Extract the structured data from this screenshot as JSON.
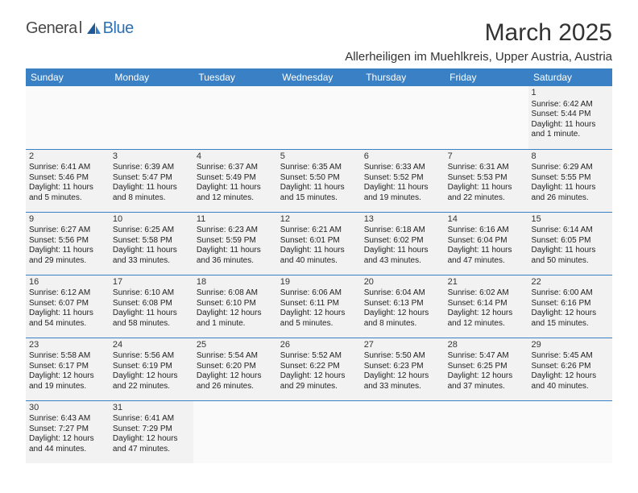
{
  "logo": {
    "general": "Genera",
    "l": "l",
    "blue": "Blue"
  },
  "title": "March 2025",
  "location": "Allerheiligen im Muehlkreis, Upper Austria, Austria",
  "dayHeaders": [
    "Sunday",
    "Monday",
    "Tuesday",
    "Wednesday",
    "Thursday",
    "Friday",
    "Saturday"
  ],
  "weeks": [
    [
      null,
      null,
      null,
      null,
      null,
      null,
      {
        "d": "1",
        "sr": "Sunrise: 6:42 AM",
        "ss": "Sunset: 5:44 PM",
        "dl1": "Daylight: 11 hours",
        "dl2": "and 1 minute."
      }
    ],
    [
      {
        "d": "2",
        "sr": "Sunrise: 6:41 AM",
        "ss": "Sunset: 5:46 PM",
        "dl1": "Daylight: 11 hours",
        "dl2": "and 5 minutes."
      },
      {
        "d": "3",
        "sr": "Sunrise: 6:39 AM",
        "ss": "Sunset: 5:47 PM",
        "dl1": "Daylight: 11 hours",
        "dl2": "and 8 minutes."
      },
      {
        "d": "4",
        "sr": "Sunrise: 6:37 AM",
        "ss": "Sunset: 5:49 PM",
        "dl1": "Daylight: 11 hours",
        "dl2": "and 12 minutes."
      },
      {
        "d": "5",
        "sr": "Sunrise: 6:35 AM",
        "ss": "Sunset: 5:50 PM",
        "dl1": "Daylight: 11 hours",
        "dl2": "and 15 minutes."
      },
      {
        "d": "6",
        "sr": "Sunrise: 6:33 AM",
        "ss": "Sunset: 5:52 PM",
        "dl1": "Daylight: 11 hours",
        "dl2": "and 19 minutes."
      },
      {
        "d": "7",
        "sr": "Sunrise: 6:31 AM",
        "ss": "Sunset: 5:53 PM",
        "dl1": "Daylight: 11 hours",
        "dl2": "and 22 minutes."
      },
      {
        "d": "8",
        "sr": "Sunrise: 6:29 AM",
        "ss": "Sunset: 5:55 PM",
        "dl1": "Daylight: 11 hours",
        "dl2": "and 26 minutes."
      }
    ],
    [
      {
        "d": "9",
        "sr": "Sunrise: 6:27 AM",
        "ss": "Sunset: 5:56 PM",
        "dl1": "Daylight: 11 hours",
        "dl2": "and 29 minutes."
      },
      {
        "d": "10",
        "sr": "Sunrise: 6:25 AM",
        "ss": "Sunset: 5:58 PM",
        "dl1": "Daylight: 11 hours",
        "dl2": "and 33 minutes."
      },
      {
        "d": "11",
        "sr": "Sunrise: 6:23 AM",
        "ss": "Sunset: 5:59 PM",
        "dl1": "Daylight: 11 hours",
        "dl2": "and 36 minutes."
      },
      {
        "d": "12",
        "sr": "Sunrise: 6:21 AM",
        "ss": "Sunset: 6:01 PM",
        "dl1": "Daylight: 11 hours",
        "dl2": "and 40 minutes."
      },
      {
        "d": "13",
        "sr": "Sunrise: 6:18 AM",
        "ss": "Sunset: 6:02 PM",
        "dl1": "Daylight: 11 hours",
        "dl2": "and 43 minutes."
      },
      {
        "d": "14",
        "sr": "Sunrise: 6:16 AM",
        "ss": "Sunset: 6:04 PM",
        "dl1": "Daylight: 11 hours",
        "dl2": "and 47 minutes."
      },
      {
        "d": "15",
        "sr": "Sunrise: 6:14 AM",
        "ss": "Sunset: 6:05 PM",
        "dl1": "Daylight: 11 hours",
        "dl2": "and 50 minutes."
      }
    ],
    [
      {
        "d": "16",
        "sr": "Sunrise: 6:12 AM",
        "ss": "Sunset: 6:07 PM",
        "dl1": "Daylight: 11 hours",
        "dl2": "and 54 minutes."
      },
      {
        "d": "17",
        "sr": "Sunrise: 6:10 AM",
        "ss": "Sunset: 6:08 PM",
        "dl1": "Daylight: 11 hours",
        "dl2": "and 58 minutes."
      },
      {
        "d": "18",
        "sr": "Sunrise: 6:08 AM",
        "ss": "Sunset: 6:10 PM",
        "dl1": "Daylight: 12 hours",
        "dl2": "and 1 minute."
      },
      {
        "d": "19",
        "sr": "Sunrise: 6:06 AM",
        "ss": "Sunset: 6:11 PM",
        "dl1": "Daylight: 12 hours",
        "dl2": "and 5 minutes."
      },
      {
        "d": "20",
        "sr": "Sunrise: 6:04 AM",
        "ss": "Sunset: 6:13 PM",
        "dl1": "Daylight: 12 hours",
        "dl2": "and 8 minutes."
      },
      {
        "d": "21",
        "sr": "Sunrise: 6:02 AM",
        "ss": "Sunset: 6:14 PM",
        "dl1": "Daylight: 12 hours",
        "dl2": "and 12 minutes."
      },
      {
        "d": "22",
        "sr": "Sunrise: 6:00 AM",
        "ss": "Sunset: 6:16 PM",
        "dl1": "Daylight: 12 hours",
        "dl2": "and 15 minutes."
      }
    ],
    [
      {
        "d": "23",
        "sr": "Sunrise: 5:58 AM",
        "ss": "Sunset: 6:17 PM",
        "dl1": "Daylight: 12 hours",
        "dl2": "and 19 minutes."
      },
      {
        "d": "24",
        "sr": "Sunrise: 5:56 AM",
        "ss": "Sunset: 6:19 PM",
        "dl1": "Daylight: 12 hours",
        "dl2": "and 22 minutes."
      },
      {
        "d": "25",
        "sr": "Sunrise: 5:54 AM",
        "ss": "Sunset: 6:20 PM",
        "dl1": "Daylight: 12 hours",
        "dl2": "and 26 minutes."
      },
      {
        "d": "26",
        "sr": "Sunrise: 5:52 AM",
        "ss": "Sunset: 6:22 PM",
        "dl1": "Daylight: 12 hours",
        "dl2": "and 29 minutes."
      },
      {
        "d": "27",
        "sr": "Sunrise: 5:50 AM",
        "ss": "Sunset: 6:23 PM",
        "dl1": "Daylight: 12 hours",
        "dl2": "and 33 minutes."
      },
      {
        "d": "28",
        "sr": "Sunrise: 5:47 AM",
        "ss": "Sunset: 6:25 PM",
        "dl1": "Daylight: 12 hours",
        "dl2": "and 37 minutes."
      },
      {
        "d": "29",
        "sr": "Sunrise: 5:45 AM",
        "ss": "Sunset: 6:26 PM",
        "dl1": "Daylight: 12 hours",
        "dl2": "and 40 minutes."
      }
    ],
    [
      {
        "d": "30",
        "sr": "Sunrise: 6:43 AM",
        "ss": "Sunset: 7:27 PM",
        "dl1": "Daylight: 12 hours",
        "dl2": "and 44 minutes."
      },
      {
        "d": "31",
        "sr": "Sunrise: 6:41 AM",
        "ss": "Sunset: 7:29 PM",
        "dl1": "Daylight: 12 hours",
        "dl2": "and 47 minutes."
      },
      null,
      null,
      null,
      null,
      null
    ]
  ],
  "style": {
    "header_bg": "#3a80c4",
    "cell_bg": "#f2f2f2",
    "border_color": "#3a80c4"
  }
}
